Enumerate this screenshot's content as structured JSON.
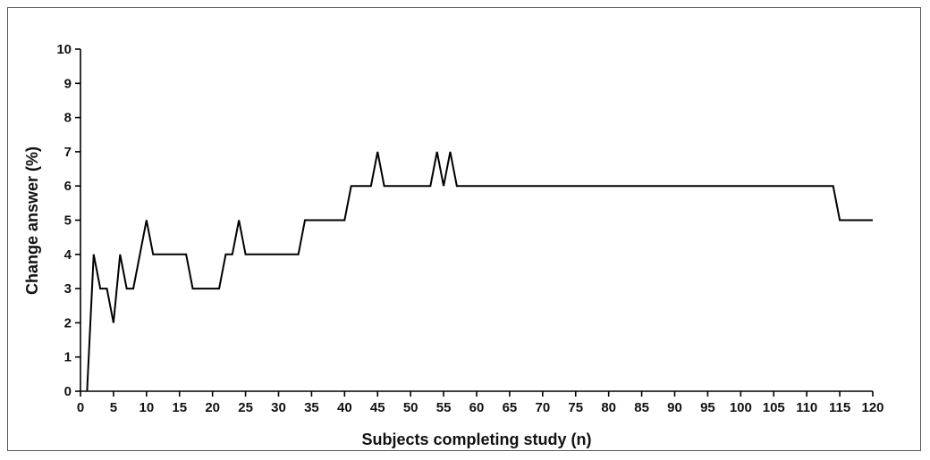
{
  "chart_data": {
    "type": "line",
    "title": "",
    "xlabel": "Subjects completing study (n)",
    "ylabel": "Change answer (%)",
    "xlim": [
      0,
      120
    ],
    "ylim": [
      0,
      10
    ],
    "x_ticks": [
      0,
      5,
      10,
      15,
      20,
      25,
      30,
      35,
      40,
      45,
      50,
      55,
      60,
      65,
      70,
      75,
      80,
      85,
      90,
      95,
      100,
      105,
      110,
      115,
      120
    ],
    "y_ticks": [
      0,
      1,
      2,
      3,
      4,
      5,
      6,
      7,
      8,
      9,
      10
    ],
    "grid": false,
    "legend": "none",
    "line_color": "#000000",
    "series": [
      {
        "x": [
          1,
          2,
          3,
          4,
          5,
          6,
          7,
          8,
          9,
          10,
          11,
          12,
          13,
          14,
          15,
          16,
          17,
          18,
          19,
          20,
          21,
          22,
          23,
          24,
          25,
          26,
          27,
          28,
          29,
          30,
          31,
          32,
          33,
          34,
          35,
          36,
          37,
          38,
          39,
          40,
          41,
          42,
          43,
          44,
          45,
          46,
          47,
          48,
          49,
          50,
          51,
          52,
          53,
          54,
          55,
          56,
          57,
          58,
          59,
          60,
          61,
          62,
          63,
          64,
          65,
          66,
          67,
          68,
          69,
          70,
          71,
          72,
          73,
          74,
          75,
          76,
          77,
          78,
          79,
          80,
          81,
          82,
          83,
          84,
          85,
          86,
          87,
          88,
          89,
          90,
          91,
          92,
          93,
          94,
          95,
          96,
          97,
          98,
          99,
          100,
          101,
          102,
          103,
          104,
          105,
          106,
          107,
          108,
          109,
          110,
          111,
          112,
          113,
          114,
          115,
          116,
          117,
          118,
          119,
          120
        ],
        "y": [
          0,
          4,
          3,
          3,
          2,
          4,
          3,
          3,
          4,
          5,
          4,
          4,
          4,
          4,
          4,
          4,
          3,
          3,
          3,
          3,
          3,
          4,
          4,
          5,
          4,
          4,
          4,
          4,
          4,
          4,
          4,
          4,
          4,
          5,
          5,
          5,
          5,
          5,
          5,
          5,
          6,
          6,
          6,
          6,
          7,
          6,
          6,
          6,
          6,
          6,
          6,
          6,
          6,
          7,
          6,
          7,
          6,
          6,
          6,
          6,
          6,
          6,
          6,
          6,
          6,
          6,
          6,
          6,
          6,
          6,
          6,
          6,
          6,
          6,
          6,
          6,
          6,
          6,
          6,
          6,
          6,
          6,
          6,
          6,
          6,
          6,
          6,
          6,
          6,
          6,
          6,
          6,
          6,
          6,
          6,
          6,
          6,
          6,
          6,
          6,
          6,
          6,
          6,
          6,
          6,
          6,
          6,
          6,
          6,
          6,
          6,
          6,
          6,
          6,
          5,
          5,
          5,
          5,
          5,
          5
        ]
      }
    ]
  }
}
